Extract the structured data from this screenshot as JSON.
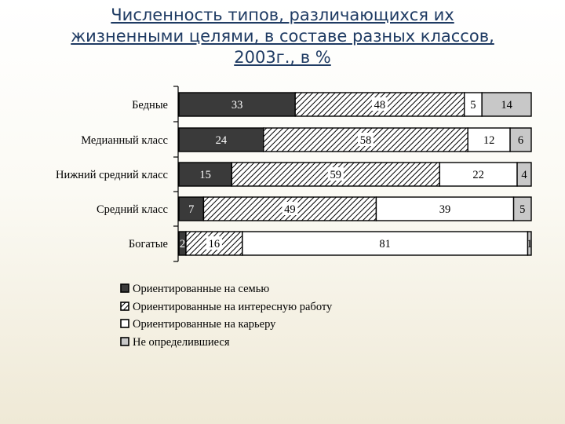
{
  "title_lines": [
    "Численность типов, различающихся их",
    "жизненными целями, в составе разных классов,",
    "2003г., в %"
  ],
  "colors": {
    "title": "#1f3b63",
    "family": "#3a3a3a",
    "interesting_work": "#ffffff",
    "career": "#ffffff",
    "undecided": "#c8c8c8"
  },
  "chart_data": {
    "type": "bar",
    "orientation": "horizontal",
    "stacked": true,
    "title": "Численность типов, различающихся их жизненными целями, в составе разных классов, 2003г., в %",
    "categories": [
      "Бедные",
      "Медианный класс",
      "Нижний средний класс",
      "Средний класс",
      "Богатые"
    ],
    "series": [
      {
        "name": "Ориентированные на семью",
        "values": [
          33,
          24,
          15,
          7,
          2
        ],
        "pattern": "solid-dark"
      },
      {
        "name": "Ориентированные на интересную работу",
        "values": [
          48,
          58,
          59,
          49,
          16
        ],
        "pattern": "hatched"
      },
      {
        "name": "Ориентированные на карьеру",
        "values": [
          5,
          12,
          22,
          39,
          81
        ],
        "pattern": "white"
      },
      {
        "name": "Не определившиеся",
        "values": [
          14,
          6,
          4,
          5,
          1
        ],
        "pattern": "light-gray"
      }
    ],
    "xlim": [
      0,
      100
    ],
    "legend": "bottom",
    "grid": false
  }
}
